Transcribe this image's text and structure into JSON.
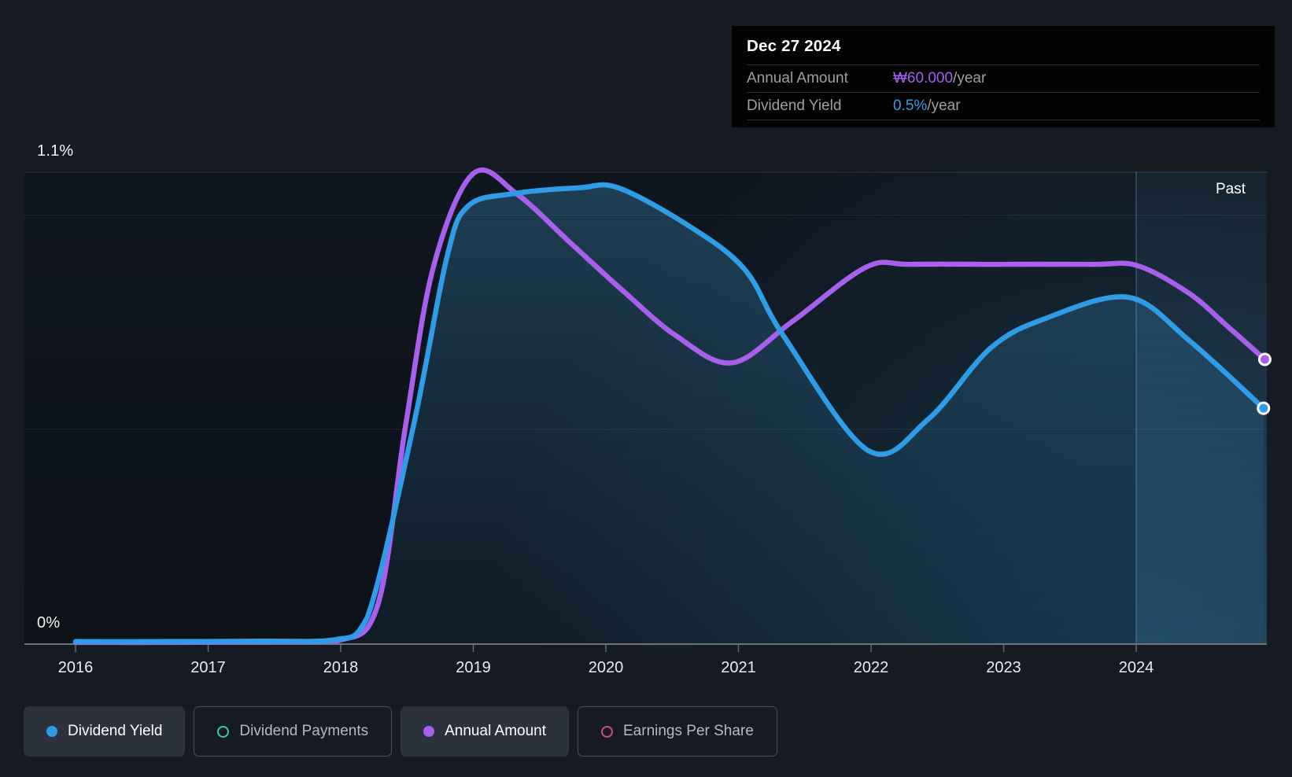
{
  "tooltip": {
    "date": "Dec 27 2024",
    "rows": [
      {
        "label": "Annual Amount",
        "value": "₩60.000",
        "suffix": "/year",
        "color": "#a45ef5"
      },
      {
        "label": "Dividend Yield",
        "value": "0.5%",
        "suffix": "/year",
        "color": "#2e9fe8"
      }
    ]
  },
  "y_axis": {
    "top_label": "1.1%",
    "bottom_label": "0%"
  },
  "past_label": "Past",
  "legend": [
    {
      "label": "Dividend Yield",
      "color": "#2e9be8",
      "marker": "filled",
      "active": true
    },
    {
      "label": "Dividend Payments",
      "color": "#3ec6b4",
      "marker": "outline",
      "active": false
    },
    {
      "label": "Annual Amount",
      "color": "#a85feb",
      "marker": "filled",
      "active": true
    },
    {
      "label": "Earnings Per Share",
      "color": "#d6498a",
      "marker": "outline",
      "active": false
    }
  ],
  "chart_data": {
    "type": "line",
    "title": "Dividend history",
    "x_tick_labels": [
      "2016",
      "2017",
      "2018",
      "2019",
      "2020",
      "2021",
      "2022",
      "2023",
      "2024"
    ],
    "xlim": [
      2015.6,
      2025.0
    ],
    "ylim_percent": [
      0,
      1.21
    ],
    "gridlines_percent": [
      {
        "pct": 1.1,
        "strong": true
      },
      {
        "pct": 1.0,
        "strong": false
      },
      {
        "pct": 0.5,
        "strong": false
      },
      {
        "pct": 0.0,
        "axis": true
      }
    ],
    "past_region": {
      "start_year": 2024.0,
      "label": "Past"
    },
    "series": [
      {
        "name": "Annual Amount",
        "color": "#a85feb",
        "units": "KRW, drawn on visual %-axis scale",
        "end_value_label": "₩60.000/year",
        "area": false,
        "points": [
          [
            2016.0,
            0.002
          ],
          [
            2016.7,
            0.002
          ],
          [
            2017.4,
            0.003
          ],
          [
            2017.98,
            0.006
          ],
          [
            2018.28,
            0.09
          ],
          [
            2018.49,
            0.51
          ],
          [
            2018.7,
            0.88
          ],
          [
            2019.0,
            1.097
          ],
          [
            2019.33,
            1.049
          ],
          [
            2019.74,
            0.933
          ],
          [
            2020.13,
            0.823
          ],
          [
            2020.53,
            0.718
          ],
          [
            2020.95,
            0.655
          ],
          [
            2021.4,
            0.75
          ],
          [
            2021.96,
            0.878
          ],
          [
            2022.3,
            0.885
          ],
          [
            2023.0,
            0.885
          ],
          [
            2023.68,
            0.885
          ],
          [
            2024.01,
            0.882
          ],
          [
            2024.4,
            0.817
          ],
          [
            2024.7,
            0.737
          ],
          [
            2024.97,
            0.663
          ]
        ]
      },
      {
        "name": "Dividend Yield",
        "color": "#2f9ce8",
        "units": "%",
        "end_value_label": "0.5%/year",
        "area": true,
        "points": [
          [
            2016.0,
            0.004
          ],
          [
            2016.7,
            0.004
          ],
          [
            2017.4,
            0.005
          ],
          [
            2017.95,
            0.008
          ],
          [
            2018.2,
            0.06
          ],
          [
            2018.55,
            0.51
          ],
          [
            2018.8,
            0.9
          ],
          [
            2018.96,
            1.021
          ],
          [
            2019.3,
            1.05
          ],
          [
            2019.8,
            1.064
          ],
          [
            2020.1,
            1.063
          ],
          [
            2020.65,
            0.97
          ],
          [
            2021.05,
            0.872
          ],
          [
            2021.34,
            0.718
          ],
          [
            2021.98,
            0.45
          ],
          [
            2022.43,
            0.523
          ],
          [
            2022.9,
            0.689
          ],
          [
            2023.32,
            0.759
          ],
          [
            2023.94,
            0.808
          ],
          [
            2024.4,
            0.707
          ],
          [
            2024.96,
            0.549
          ]
        ]
      }
    ]
  }
}
